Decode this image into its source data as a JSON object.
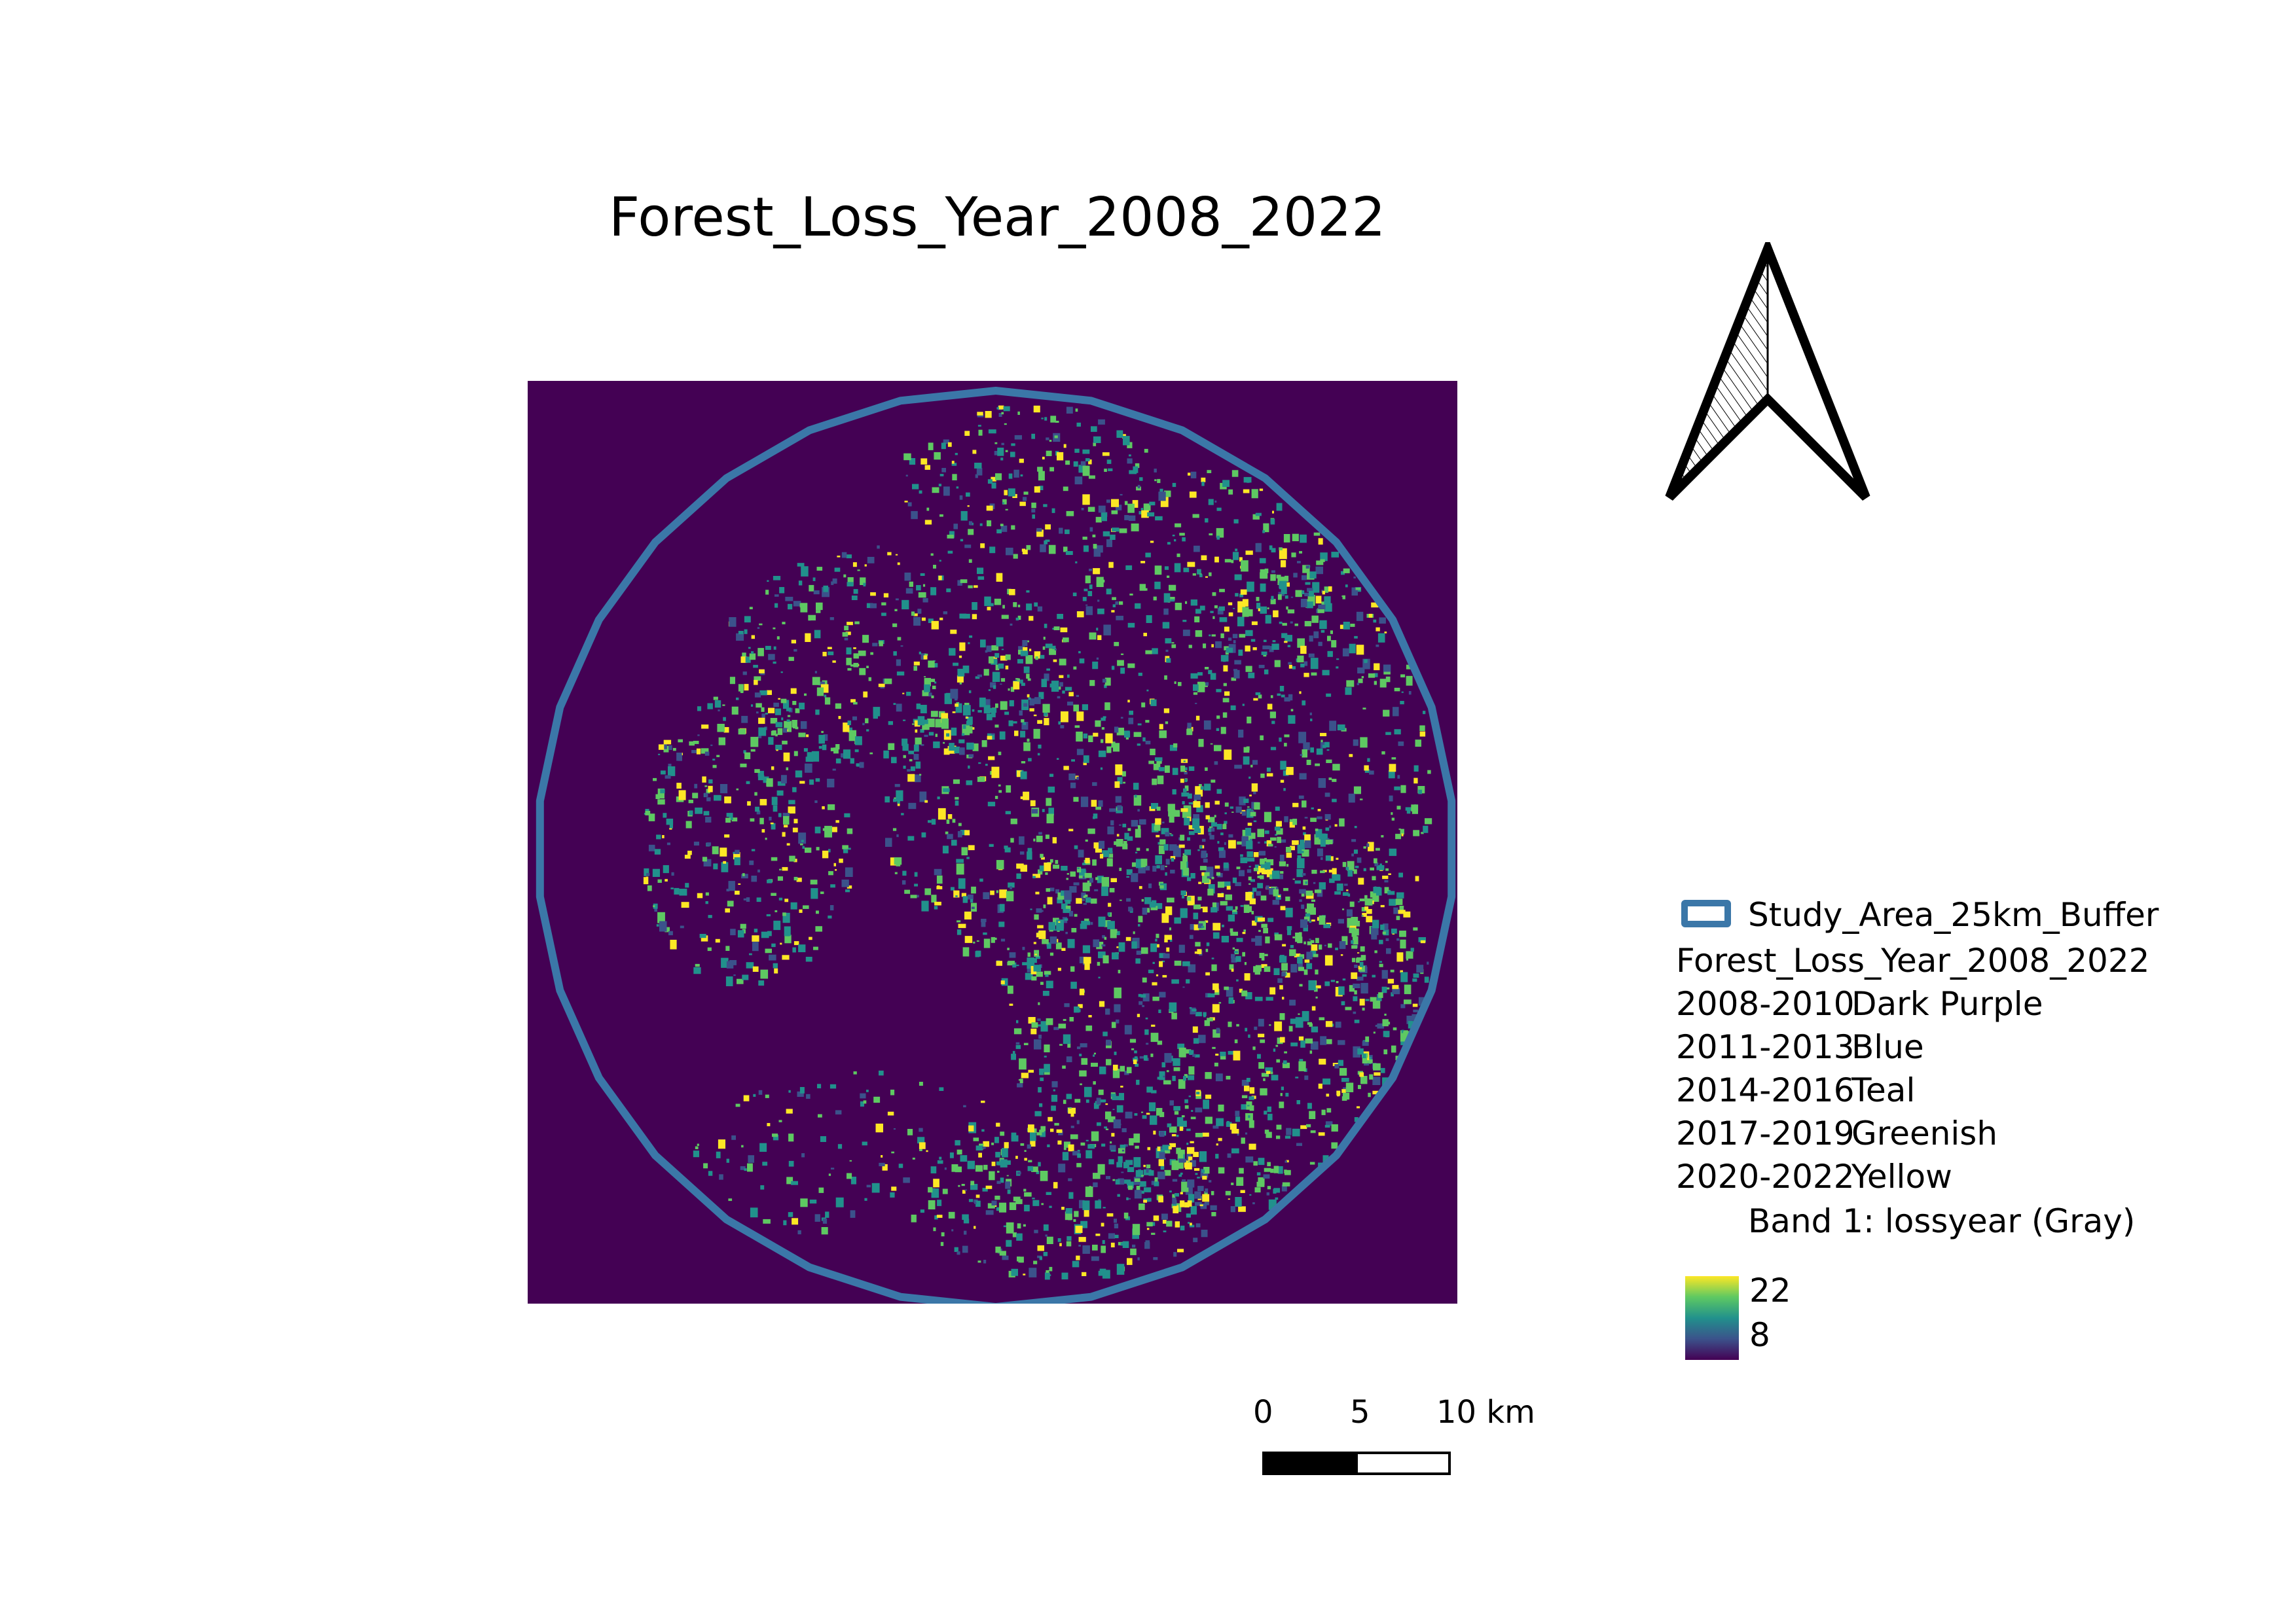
{
  "title": "Forest_Loss_Year_2008_2022",
  "colors": {
    "background": "#440154",
    "buffer_outline": "#3b77a8",
    "loss_dark_purple": "#440154",
    "loss_blue": "#3b528b",
    "loss_teal": "#21918c",
    "loss_greenish": "#5ec962",
    "loss_yellow": "#fde725"
  },
  "north_arrow": {
    "icon": "north-arrow-icon"
  },
  "legend": {
    "buffer_label": "Study_Area_25km_Buffer",
    "raster_title": "Forest_Loss_Year_2008_2022",
    "classes": [
      {
        "range": "2008-2010",
        "name": "Dark Purple"
      },
      {
        "range": "2011-2013",
        "name": "Blue"
      },
      {
        "range": "2014-2016",
        "name": "Teal"
      },
      {
        "range": "2017-2019",
        "name": "Greenish"
      },
      {
        "range": "2020-2022",
        "name": "Yellow"
      }
    ],
    "band_label": "Band 1: lossyear (Gray)",
    "ramp_max": "22",
    "ramp_min": "8"
  },
  "scalebar": {
    "labels": [
      "0",
      "5",
      "10 km"
    ]
  }
}
